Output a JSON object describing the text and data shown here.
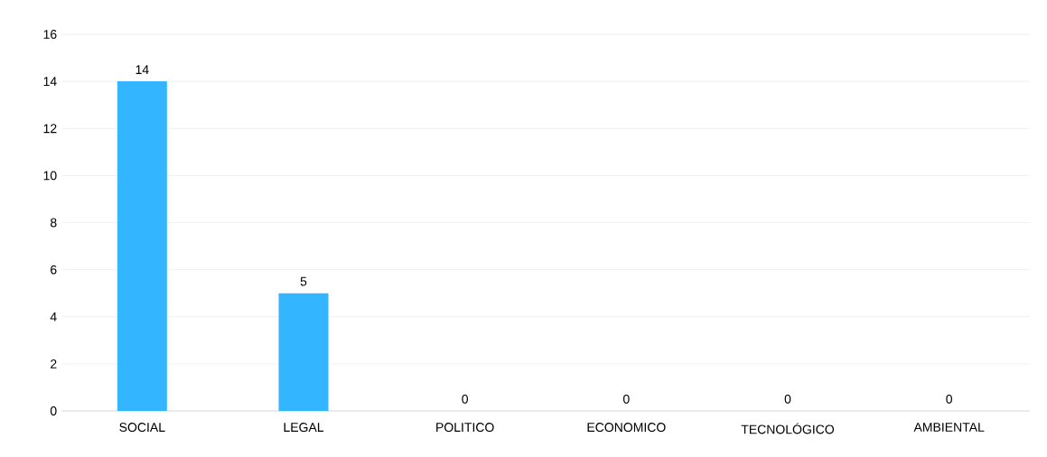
{
  "chart_data": {
    "type": "bar",
    "categories": [
      "SOCIAL",
      "LEGAL",
      "POLITICO",
      "ECONOMICO",
      "TECNOLÓGICO",
      "AMBIENTAL"
    ],
    "values": [
      14,
      5,
      0,
      0,
      0,
      0
    ],
    "color": "#33b5ff",
    "ylim": [
      0,
      16
    ],
    "yticks": [
      0,
      2,
      4,
      6,
      8,
      10,
      12,
      14,
      16
    ],
    "grid": "y",
    "data_labels": true
  }
}
